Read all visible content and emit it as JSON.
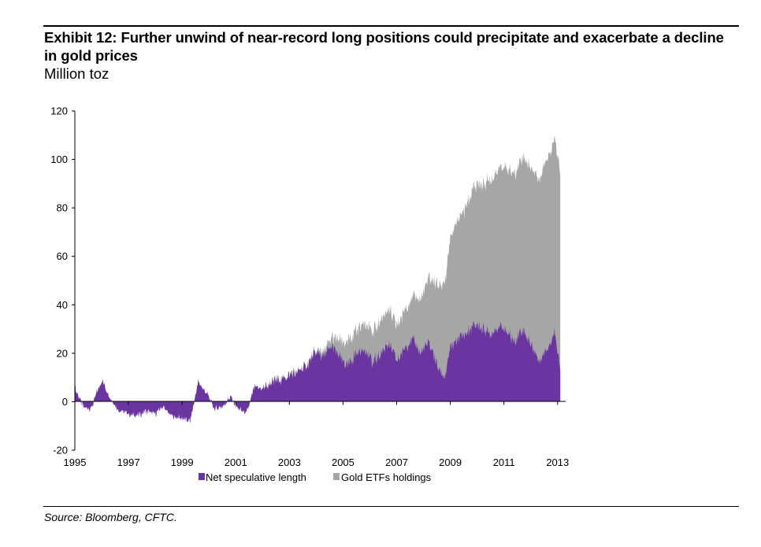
{
  "header": {
    "title": "Exhibit 12: Further unwind of near-record long positions could precipitate and exacerbate a decline in gold prices",
    "subtitle": "Million toz"
  },
  "footer": {
    "source": "Source: Bloomberg, CFTC."
  },
  "chart_data": {
    "type": "area",
    "stacked": true,
    "title": "Exhibit 12: Further unwind of near-record long positions could precipitate and exacerbate a decline in gold prices",
    "ylabel": "Million toz",
    "xlabel": "",
    "ylim": [
      -20,
      120
    ],
    "xlim": [
      1995,
      2013.3
    ],
    "y_ticks": [
      -20,
      0,
      20,
      40,
      60,
      80,
      100,
      120
    ],
    "x_ticks": [
      1995,
      1997,
      1999,
      2001,
      2003,
      2005,
      2007,
      2009,
      2011,
      2013
    ],
    "grid": false,
    "legend_position": "bottom",
    "series": [
      {
        "name": "Net speculative length",
        "color": "#6a35a0",
        "x": [
          1995.0,
          1995.3,
          1995.6,
          1996.0,
          1996.3,
          1996.6,
          1997.0,
          1997.3,
          1997.6,
          1998.0,
          1998.3,
          1998.6,
          1999.0,
          1999.3,
          1999.6,
          1999.9,
          2000.2,
          2000.5,
          2000.8,
          2001.1,
          2001.4,
          2001.7,
          2002.0,
          2002.4,
          2002.8,
          2003.2,
          2003.6,
          2004.0,
          2004.3,
          2004.6,
          2004.9,
          2005.2,
          2005.5,
          2005.8,
          2006.1,
          2006.4,
          2006.7,
          2007.0,
          2007.3,
          2007.6,
          2007.9,
          2008.2,
          2008.5,
          2008.8,
          2009.0,
          2009.3,
          2009.6,
          2009.9,
          2010.2,
          2010.5,
          2010.8,
          2011.1,
          2011.4,
          2011.7,
          2012.0,
          2012.3,
          2012.6,
          2012.9,
          2013.1
        ],
        "values": [
          6,
          -2,
          -3,
          9,
          2,
          -3,
          -5,
          -6,
          -4,
          -5,
          -2,
          -6,
          -7,
          -8,
          8,
          4,
          -3,
          -2,
          2,
          -3,
          -5,
          6,
          5,
          8,
          10,
          12,
          15,
          20,
          19,
          23,
          18,
          15,
          20,
          22,
          16,
          20,
          24,
          17,
          22,
          26,
          20,
          25,
          15,
          10,
          22,
          26,
          28,
          32,
          30,
          28,
          31,
          29,
          25,
          30,
          24,
          17,
          22,
          29,
          14
        ]
      },
      {
        "name": "Gold ETFs holdings",
        "color": "#a6a6a6",
        "x": [
          1995.0,
          2003.0,
          2003.5,
          2004.0,
          2004.5,
          2004.9,
          2005.2,
          2005.6,
          2006.0,
          2006.4,
          2006.8,
          2007.2,
          2007.6,
          2008.0,
          2008.3,
          2008.6,
          2008.9,
          2009.1,
          2009.4,
          2009.7,
          2010.0,
          2010.3,
          2010.6,
          2010.9,
          2011.2,
          2011.5,
          2011.8,
          2012.1,
          2012.4,
          2012.7,
          2013.0,
          2013.2
        ],
        "values": [
          0,
          0,
          0,
          1,
          3,
          7,
          10,
          10,
          12,
          14,
          14,
          15,
          18,
          24,
          29,
          35,
          42,
          47,
          50,
          54,
          58,
          61,
          64,
          66,
          68,
          70,
          72,
          74,
          76,
          79,
          81,
          80
        ]
      }
    ]
  }
}
